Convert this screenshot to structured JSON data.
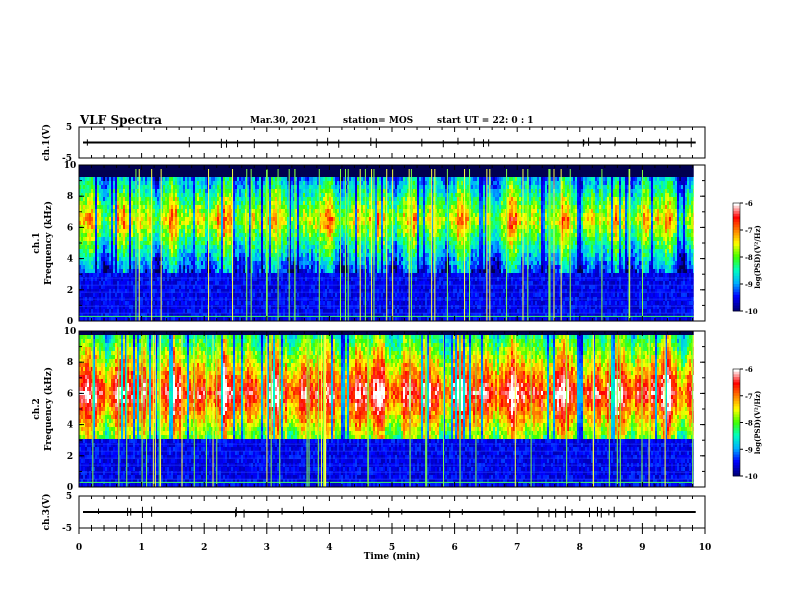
{
  "header": {
    "title": "VLF Spectra",
    "date": "Mar.30, 2021",
    "station": "station= MOS",
    "start_ut": "start UT = 22: 0 : 1"
  },
  "chart_data": {
    "type": "heatmap",
    "xlabel": "Time (min)",
    "xlim": [
      0,
      10
    ],
    "xticks": [
      0,
      1,
      2,
      3,
      4,
      5,
      6,
      7,
      8,
      9,
      10
    ],
    "panels": [
      {
        "id": "ch1_waveform",
        "ylabel": "ch.1(V)",
        "ylim": [
          -5,
          5
        ],
        "yticks": [
          "5",
          "-5"
        ],
        "trace_level": 0
      },
      {
        "id": "ch1_spectrogram",
        "ylabel": "ch.1 Frequency (kHz)",
        "ylim": [
          0,
          10
        ],
        "yticks": [
          0,
          2,
          4,
          6,
          8,
          10
        ],
        "colorbar": {
          "label": "log(PSD)(V²/Hz)",
          "range": [
            -10,
            -6
          ],
          "ticks": [
            "-6",
            "-7",
            "-8",
            "-9",
            "-10"
          ]
        },
        "bands": {
          "quiet_below_khz": 3.0,
          "active_khz": [
            3.0,
            9.3
          ],
          "peak_khz": 6.5
        }
      },
      {
        "id": "ch2_spectrogram",
        "ylabel": "ch.2 Frequency (kHz)",
        "ylim": [
          0,
          10
        ],
        "yticks": [
          0,
          2,
          4,
          6,
          8,
          10
        ],
        "colorbar": {
          "label": "log(PSD)(V²/Hz)",
          "range": [
            -10,
            -6
          ],
          "ticks": [
            "-6",
            "-7",
            "-8",
            "-9",
            "-10"
          ]
        },
        "bands": {
          "quiet_below_khz": 3.0,
          "active_khz": [
            3.0,
            9.8
          ],
          "peak_khz": 6.0
        }
      },
      {
        "id": "ch3_waveform",
        "ylabel": "ch.3(V)",
        "ylim": [
          -5,
          5
        ],
        "yticks": [
          "5",
          "-5"
        ],
        "trace_level": 0
      }
    ],
    "data_end_min": 9.82
  },
  "colors": {
    "colormap": [
      "#000080",
      "#0000ff",
      "#00b0ff",
      "#00ffc0",
      "#40ff00",
      "#ffff00",
      "#ff8000",
      "#ff0000",
      "#ffffff"
    ]
  }
}
